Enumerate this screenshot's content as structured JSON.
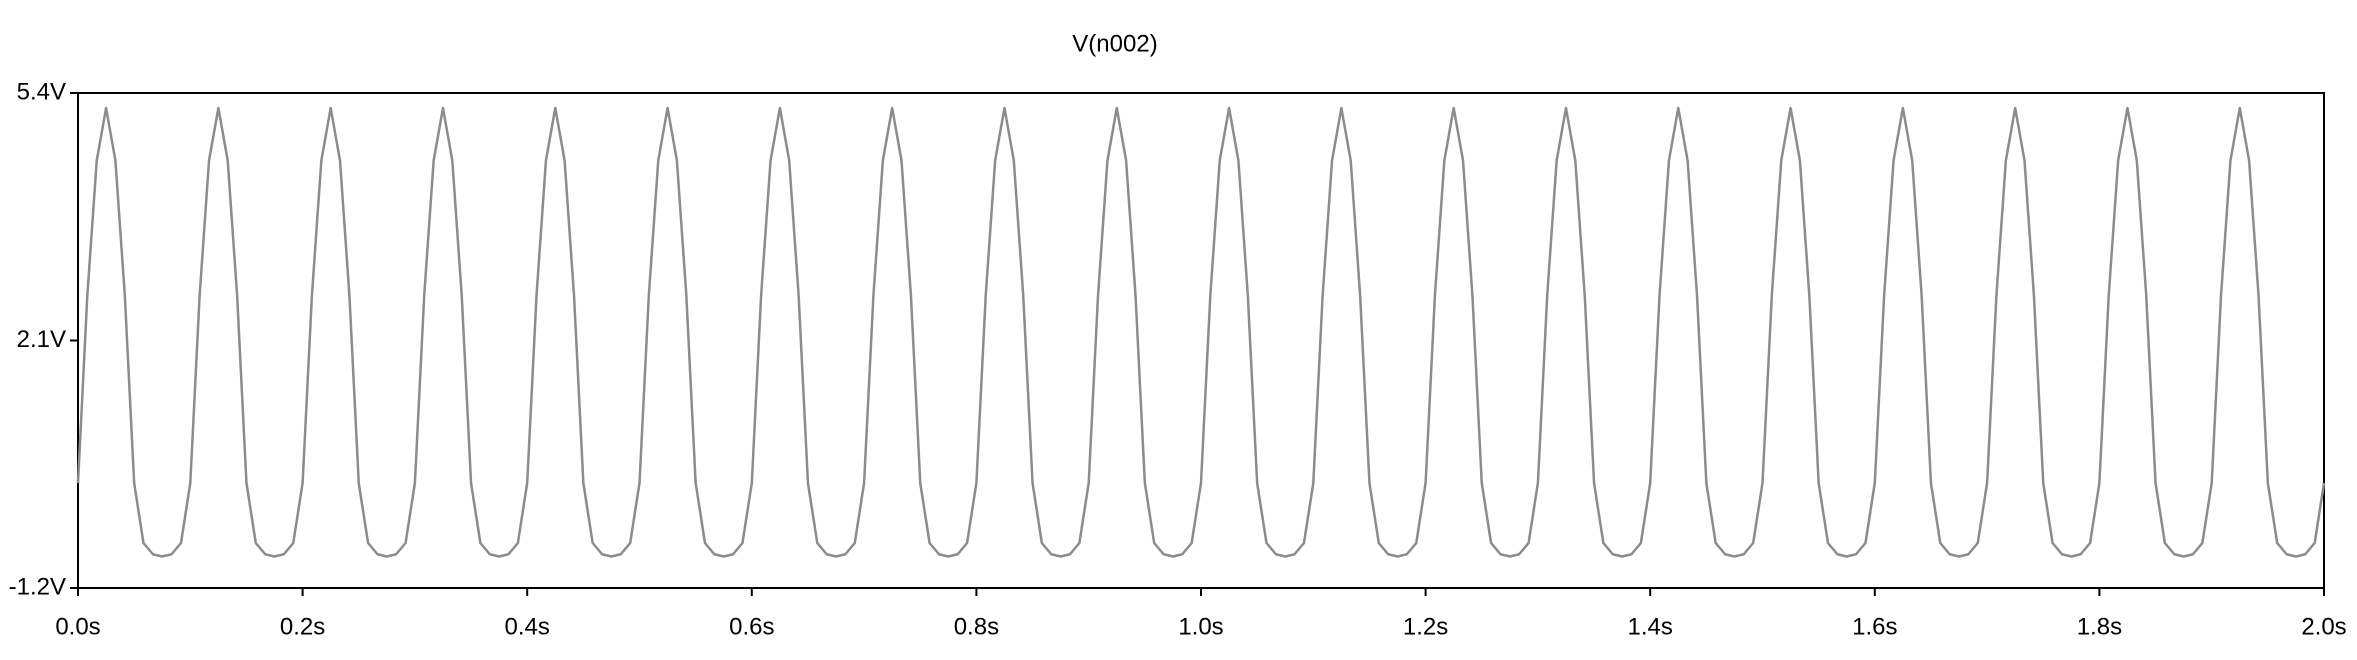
{
  "chart_data": {
    "type": "line",
    "title": "V(n002)",
    "color": "#8c8c8c",
    "x": [
      0,
      0.0083,
      0.0167,
      0.025,
      0.0333,
      0.0417,
      0.05,
      0.0583,
      0.0667,
      0.075,
      0.0833,
      0.0917,
      0.1,
      0.1083,
      0.1167,
      0.125,
      0.1333,
      0.1417,
      0.15,
      0.1583,
      0.1667,
      0.175,
      0.1833,
      0.1917,
      0.2,
      0.2083,
      0.2167,
      0.225,
      0.2333,
      0.2417,
      0.25,
      0.2583,
      0.2667,
      0.275,
      0.2833,
      0.2917,
      0.3,
      0.3083,
      0.3167,
      0.325,
      0.3333,
      0.3417,
      0.35,
      0.3583,
      0.3667,
      0.375,
      0.3833,
      0.3917,
      0.4,
      0.4083,
      0.4167,
      0.425,
      0.4333,
      0.4417,
      0.45,
      0.4583,
      0.4667,
      0.475,
      0.4833,
      0.4917,
      0.5,
      0.5083,
      0.5167,
      0.525,
      0.5333,
      0.5417,
      0.55,
      0.5583,
      0.5667,
      0.575,
      0.5833,
      0.5917,
      0.6,
      0.6083,
      0.6167,
      0.625,
      0.6333,
      0.6417,
      0.65,
      0.6583,
      0.6667,
      0.675,
      0.6833,
      0.6917,
      0.7,
      0.7083,
      0.7167,
      0.725,
      0.7333,
      0.7417,
      0.75,
      0.7583,
      0.7667,
      0.775,
      0.7833,
      0.7917,
      0.8,
      0.8083,
      0.8167,
      0.825,
      0.8333,
      0.8417,
      0.85,
      0.8583,
      0.8667,
      0.875,
      0.8833,
      0.8917,
      0.9,
      0.9083,
      0.9167,
      0.925,
      0.9333,
      0.9417,
      0.95,
      0.9583,
      0.9667,
      0.975,
      0.9833,
      0.9917,
      1.0,
      1.0083,
      1.0167,
      1.025,
      1.0333,
      1.0417,
      1.05,
      1.0583,
      1.0667,
      1.075,
      1.0833,
      1.0917,
      1.1,
      1.1083,
      1.1167,
      1.125,
      1.1333,
      1.1417,
      1.15,
      1.1583,
      1.1667,
      1.175,
      1.1833,
      1.1917,
      1.2,
      1.2083,
      1.2167,
      1.225,
      1.2333,
      1.2417,
      1.25,
      1.2583,
      1.2667,
      1.275,
      1.2833,
      1.2917,
      1.3,
      1.3083,
      1.3167,
      1.325,
      1.3333,
      1.3417,
      1.35,
      1.3583,
      1.3667,
      1.375,
      1.3833,
      1.3917,
      1.4,
      1.4083,
      1.4167,
      1.425,
      1.4333,
      1.4417,
      1.45,
      1.4583,
      1.4667,
      1.475,
      1.4833,
      1.4917,
      1.5,
      1.5083,
      1.5167,
      1.525,
      1.5333,
      1.5417,
      1.55,
      1.5583,
      1.5667,
      1.575,
      1.5833,
      1.5917,
      1.6,
      1.6083,
      1.6167,
      1.625,
      1.6333,
      1.6417,
      1.65,
      1.6583,
      1.6667,
      1.675,
      1.6833,
      1.6917,
      1.7,
      1.7083,
      1.7167,
      1.725,
      1.7333,
      1.7417,
      1.75,
      1.7583,
      1.7667,
      1.775,
      1.7833,
      1.7917,
      1.8,
      1.8083,
      1.8167,
      1.825,
      1.8333,
      1.8417,
      1.85,
      1.8583,
      1.8667,
      1.875,
      1.8833,
      1.8917,
      1.9,
      1.9083,
      1.9167,
      1.925,
      1.9333,
      1.9417,
      1.95,
      1.9583,
      1.9667,
      1.975,
      1.9833,
      1.9917,
      2.0
    ],
    "values": [
      0.2,
      2.7,
      4.5,
      5.2,
      4.5,
      2.7,
      0.2,
      -0.6,
      -0.75,
      -0.78,
      -0.75,
      -0.6,
      0.2,
      2.7,
      4.5,
      5.2,
      4.5,
      2.7,
      0.2,
      -0.6,
      -0.75,
      -0.78,
      -0.75,
      -0.6,
      0.2,
      2.7,
      4.5,
      5.2,
      4.5,
      2.7,
      0.2,
      -0.6,
      -0.75,
      -0.78,
      -0.75,
      -0.6,
      0.2,
      2.7,
      4.5,
      5.2,
      4.5,
      2.7,
      0.2,
      -0.6,
      -0.75,
      -0.78,
      -0.75,
      -0.6,
      0.2,
      2.7,
      4.5,
      5.2,
      4.5,
      2.7,
      0.2,
      -0.6,
      -0.75,
      -0.78,
      -0.75,
      -0.6,
      0.2,
      2.7,
      4.5,
      5.2,
      4.5,
      2.7,
      0.2,
      -0.6,
      -0.75,
      -0.78,
      -0.75,
      -0.6,
      0.2,
      2.7,
      4.5,
      5.2,
      4.5,
      2.7,
      0.2,
      -0.6,
      -0.75,
      -0.78,
      -0.75,
      -0.6,
      0.2,
      2.7,
      4.5,
      5.2,
      4.5,
      2.7,
      0.2,
      -0.6,
      -0.75,
      -0.78,
      -0.75,
      -0.6,
      0.2,
      2.7,
      4.5,
      5.2,
      4.5,
      2.7,
      0.2,
      -0.6,
      -0.75,
      -0.78,
      -0.75,
      -0.6,
      0.2,
      2.7,
      4.5,
      5.2,
      4.5,
      2.7,
      0.2,
      -0.6,
      -0.75,
      -0.78,
      -0.75,
      -0.6,
      0.2,
      2.7,
      4.5,
      5.2,
      4.5,
      2.7,
      0.2,
      -0.6,
      -0.75,
      -0.78,
      -0.75,
      -0.6,
      0.2,
      2.7,
      4.5,
      5.2,
      4.5,
      2.7,
      0.2,
      -0.6,
      -0.75,
      -0.78,
      -0.75,
      -0.6,
      0.2,
      2.7,
      4.5,
      5.2,
      4.5,
      2.7,
      0.2,
      -0.6,
      -0.75,
      -0.78,
      -0.75,
      -0.6,
      0.2,
      2.7,
      4.5,
      5.2,
      4.5,
      2.7,
      0.2,
      -0.6,
      -0.75,
      -0.78,
      -0.75,
      -0.6,
      0.2,
      2.7,
      4.5,
      5.2,
      4.5,
      2.7,
      0.2,
      -0.6,
      -0.75,
      -0.78,
      -0.75,
      -0.6,
      0.2,
      2.7,
      4.5,
      5.2,
      4.5,
      2.7,
      0.2,
      -0.6,
      -0.75,
      -0.78,
      -0.75,
      -0.6,
      0.2,
      2.7,
      4.5,
      5.2,
      4.5,
      2.7,
      0.2,
      -0.6,
      -0.75,
      -0.78,
      -0.75,
      -0.6,
      0.2,
      2.7,
      4.5,
      5.2,
      4.5,
      2.7,
      0.2,
      -0.6,
      -0.75,
      -0.78,
      -0.75,
      -0.6,
      0.2,
      2.7,
      4.5,
      5.2,
      4.5,
      2.7,
      0.2,
      -0.6,
      -0.75,
      -0.78,
      -0.75,
      -0.6,
      0.2,
      2.7,
      4.5,
      5.2,
      4.5,
      2.7,
      0.2,
      -0.6,
      -0.75,
      -0.78,
      -0.75,
      -0.6,
      0.2
    ],
    "xlim": [
      0,
      2
    ],
    "ylim": [
      -1.2,
      5.4
    ],
    "xticks": [
      {
        "value": 0,
        "label": "0.0s"
      },
      {
        "value": 0.2,
        "label": "0.2s"
      },
      {
        "value": 0.4,
        "label": "0.4s"
      },
      {
        "value": 0.6,
        "label": "0.6s"
      },
      {
        "value": 0.8,
        "label": "0.8s"
      },
      {
        "value": 1.0,
        "label": "1.0s"
      },
      {
        "value": 1.2,
        "label": "1.2s"
      },
      {
        "value": 1.4,
        "label": "1.4s"
      },
      {
        "value": 1.6,
        "label": "1.6s"
      },
      {
        "value": 1.8,
        "label": "1.8s"
      },
      {
        "value": 2.0,
        "label": "2.0s"
      }
    ],
    "yticks": [
      {
        "value": -1.2,
        "label": "-1.2V"
      },
      {
        "value": 2.1,
        "label": "2.1V"
      },
      {
        "value": 5.4,
        "label": "5.4V"
      }
    ]
  }
}
